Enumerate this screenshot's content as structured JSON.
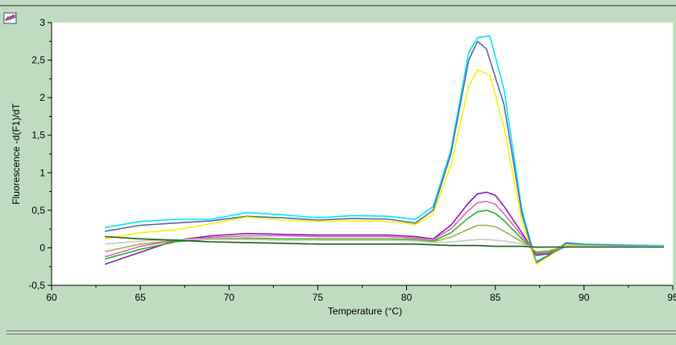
{
  "window": {
    "icon": "chart-icon"
  },
  "chart_data": {
    "type": "line",
    "xlabel": "Temperature (°C)",
    "ylabel": "Fluorescence -d(F1)/dT",
    "xlim": [
      60,
      95
    ],
    "ylim": [
      -0.5,
      3
    ],
    "xticks": [
      60,
      65,
      70,
      75,
      80,
      85,
      90,
      95
    ],
    "xtick_labels": [
      "60",
      "65",
      "70",
      "75",
      "80",
      "85",
      "90",
      "95"
    ],
    "yticks": [
      -0.5,
      0,
      0.5,
      1,
      1.5,
      2,
      2.5,
      3
    ],
    "ytick_labels": [
      "-0,5",
      "0",
      "0,5",
      "1",
      "1,5",
      "2",
      "2,5",
      "3"
    ],
    "grid": false,
    "legend": "none",
    "series": [
      {
        "color": "#00e5ff",
        "x": [
          63,
          65,
          67,
          69,
          71,
          73,
          75,
          77,
          79,
          80.5,
          81.5,
          82.5,
          83.5,
          84,
          84.7,
          85.5,
          86.5,
          87.3,
          88,
          89,
          90,
          92,
          94.5
        ],
        "y": [
          0.27,
          0.35,
          0.38,
          0.38,
          0.47,
          0.44,
          0.4,
          0.43,
          0.42,
          0.38,
          0.55,
          1.3,
          2.6,
          2.8,
          2.82,
          2.1,
          0.5,
          -0.18,
          -0.1,
          0.07,
          0.05,
          0.04,
          0.03
        ]
      },
      {
        "color": "#4f6aa8",
        "x": [
          63,
          65,
          67,
          69,
          71,
          73,
          75,
          77,
          79,
          80.5,
          81.5,
          82.5,
          83.5,
          84,
          84.5,
          85.5,
          86.5,
          87.3,
          88,
          89,
          90,
          92,
          94.5
        ],
        "y": [
          0.22,
          0.3,
          0.33,
          0.36,
          0.42,
          0.4,
          0.37,
          0.39,
          0.38,
          0.33,
          0.5,
          1.25,
          2.5,
          2.75,
          2.65,
          1.9,
          0.45,
          -0.2,
          -0.1,
          0.06,
          0.04,
          0.03,
          0.02
        ]
      },
      {
        "color": "#f2f20a",
        "x": [
          63,
          65,
          67,
          69,
          71,
          73,
          75,
          77,
          79,
          80.5,
          81.5,
          82.5,
          83.5,
          84,
          84.7,
          85.5,
          86.5,
          87.3,
          88,
          89,
          90,
          92,
          94.5
        ],
        "y": [
          0.12,
          0.2,
          0.24,
          0.32,
          0.41,
          0.37,
          0.35,
          0.36,
          0.35,
          0.31,
          0.45,
          1.1,
          2.15,
          2.37,
          2.3,
          1.6,
          0.35,
          -0.22,
          -0.12,
          0.04,
          0.03,
          0.02,
          0.02
        ]
      },
      {
        "color": "#8a1fb0",
        "x": [
          63,
          65,
          67,
          69,
          71,
          73,
          75,
          77,
          79,
          80.5,
          81.5,
          82.5,
          83.5,
          84,
          84.5,
          85,
          85.5,
          86.5,
          87.3,
          88,
          89,
          90,
          92,
          94.5
        ],
        "y": [
          -0.22,
          -0.06,
          0.1,
          0.16,
          0.19,
          0.18,
          0.17,
          0.17,
          0.17,
          0.15,
          0.12,
          0.3,
          0.6,
          0.72,
          0.74,
          0.7,
          0.55,
          0.2,
          -0.1,
          -0.08,
          0.02,
          0.02,
          0.02,
          0.02
        ]
      },
      {
        "color": "#e060c0",
        "x": [
          63,
          65,
          67,
          69,
          71,
          73,
          75,
          77,
          79,
          80.5,
          81.5,
          82.5,
          83.5,
          84,
          84.5,
          85,
          85.5,
          86.5,
          87.3,
          88,
          89,
          90,
          92,
          94.5
        ],
        "y": [
          -0.12,
          0.02,
          0.1,
          0.14,
          0.16,
          0.16,
          0.15,
          0.15,
          0.15,
          0.13,
          0.11,
          0.25,
          0.5,
          0.6,
          0.62,
          0.58,
          0.45,
          0.16,
          -0.08,
          -0.07,
          0.02,
          0.02,
          0.02,
          0.02
        ]
      },
      {
        "color": "#22b522",
        "x": [
          63,
          65,
          67,
          69,
          71,
          73,
          75,
          77,
          79,
          80.5,
          81.5,
          82.5,
          83.5,
          84,
          84.5,
          85,
          85.5,
          86.5,
          87.3,
          88,
          89,
          90,
          92,
          94.5
        ],
        "y": [
          -0.15,
          -0.02,
          0.08,
          0.12,
          0.13,
          0.12,
          0.12,
          0.12,
          0.12,
          0.11,
          0.09,
          0.2,
          0.4,
          0.48,
          0.5,
          0.46,
          0.36,
          0.12,
          -0.07,
          -0.06,
          0.02,
          0.02,
          0.02,
          0.02
        ]
      },
      {
        "color": "#9db24a",
        "x": [
          63,
          65,
          67,
          69,
          71,
          73,
          75,
          77,
          79,
          80.5,
          81.5,
          82.5,
          83.5,
          84,
          84.5,
          85,
          85.5,
          86.5,
          87.3,
          88,
          89,
          90,
          92,
          94.5
        ],
        "y": [
          -0.05,
          0.05,
          0.1,
          0.12,
          0.12,
          0.11,
          0.11,
          0.11,
          0.11,
          0.1,
          0.08,
          0.14,
          0.25,
          0.3,
          0.3,
          0.28,
          0.22,
          0.08,
          -0.05,
          -0.04,
          0.02,
          0.02,
          0.02,
          0.02
        ]
      },
      {
        "color": "#c8c8c8",
        "x": [
          63,
          65,
          67,
          69,
          71,
          73,
          75,
          77,
          79,
          80.5,
          81.5,
          82.5,
          83.5,
          84,
          84.5,
          85,
          85.5,
          86.5,
          87.3,
          88,
          89,
          90,
          92,
          94.5
        ],
        "y": [
          0.05,
          0.09,
          0.11,
          0.11,
          0.11,
          0.1,
          0.1,
          0.1,
          0.1,
          0.09,
          0.07,
          0.08,
          0.1,
          0.11,
          0.11,
          0.1,
          0.09,
          0.05,
          0.0,
          0.01,
          0.02,
          0.02,
          0.02,
          0.02
        ]
      },
      {
        "color": "#1a5c1a",
        "x": [
          63,
          65,
          67,
          69,
          71,
          73,
          75,
          77,
          79,
          80.5,
          81.5,
          82.5,
          83.5,
          84,
          85,
          86.5,
          87.3,
          88,
          89,
          90,
          92,
          94.5
        ],
        "y": [
          0.15,
          0.12,
          0.1,
          0.08,
          0.07,
          0.06,
          0.05,
          0.05,
          0.05,
          0.05,
          0.04,
          0.03,
          0.03,
          0.03,
          0.02,
          0.02,
          0.01,
          0.01,
          0.01,
          0.01,
          0.01,
          0.01
        ]
      }
    ]
  }
}
